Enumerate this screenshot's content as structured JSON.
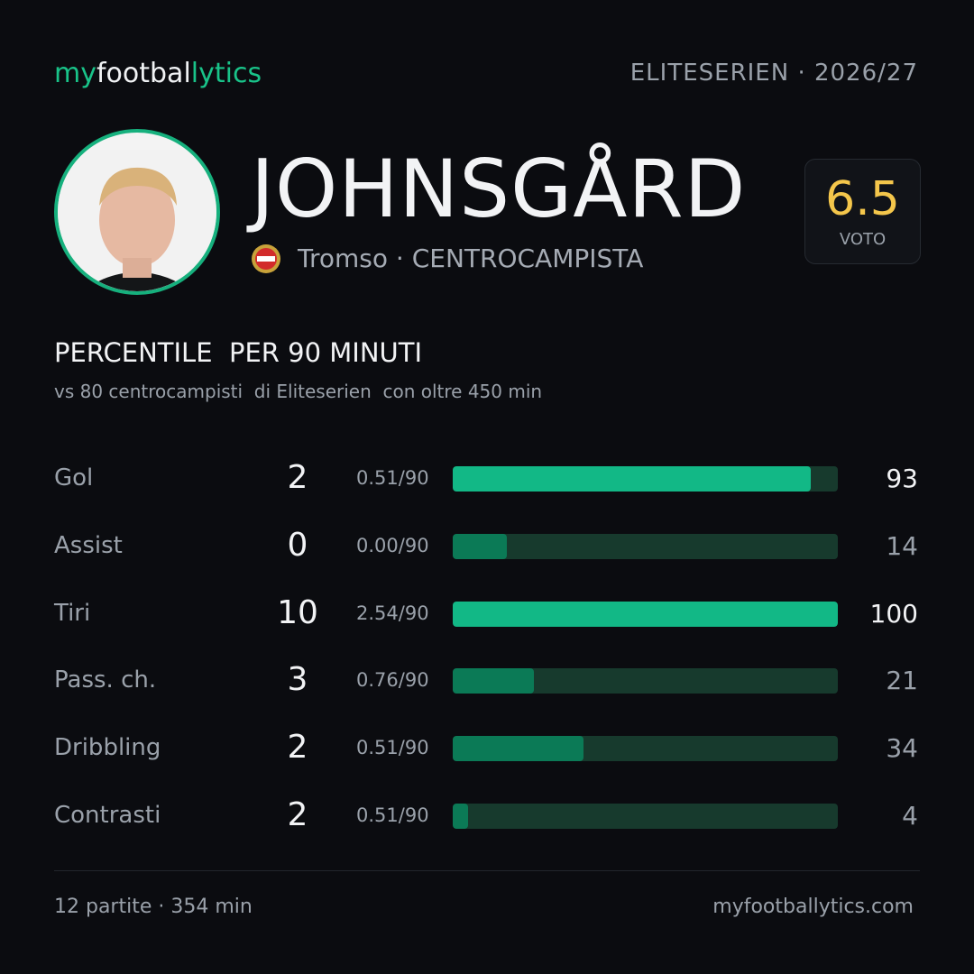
{
  "brand": {
    "part1": "my",
    "part2": "footbal",
    "part3": "lytics"
  },
  "league": "ELITESERIEN · 2026/27",
  "player": {
    "name": "JOHNSGÅRD",
    "team": "Tromso",
    "role": "· CENTROCAMPISTA",
    "rating": "6.5",
    "rating_label": "VOTO"
  },
  "section": {
    "title": "PERCENTILE  PER 90 MINUTI",
    "subtitle": "vs 80 centrocampisti  di Eliteserien  con oltre 450 min"
  },
  "stats": {
    "xlim": [
      0,
      100
    ],
    "track_color": "#173a2d",
    "rows": [
      {
        "label": "Gol",
        "total": 2,
        "per90": "0.51/90",
        "percentile": 93,
        "color": "#12b886"
      },
      {
        "label": "Assist",
        "total": 0,
        "per90": "0.00/90",
        "percentile": 14,
        "color": "#0b7a56"
      },
      {
        "label": "Tiri",
        "total": 10,
        "per90": "2.54/90",
        "percentile": 100,
        "color": "#12b886"
      },
      {
        "label": "Pass. ch.",
        "total": 3,
        "per90": "0.76/90",
        "percentile": 21,
        "color": "#0b7a56"
      },
      {
        "label": "Dribbling",
        "total": 2,
        "per90": "0.51/90",
        "percentile": 34,
        "color": "#0b7a56"
      },
      {
        "label": "Contrasti",
        "total": 2,
        "per90": "0.51/90",
        "percentile": 4,
        "color": "#0b7a56"
      }
    ]
  },
  "footer": {
    "left": "12 partite · 354 min",
    "right": "myfootballytics.com"
  }
}
